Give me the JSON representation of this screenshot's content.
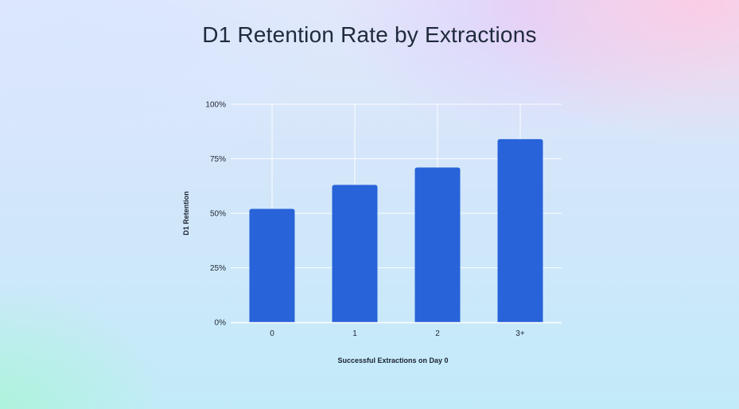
{
  "chart_data": {
    "type": "bar",
    "title": "D1 Retention Rate by Extractions",
    "xlabel": "Successful Extractions on Day 0",
    "ylabel": "D1 Retention",
    "categories": [
      "0",
      "1",
      "2",
      "3+"
    ],
    "values": [
      52,
      63,
      71,
      84
    ],
    "ylim": [
      0,
      100
    ],
    "yticks": [
      0,
      25,
      50,
      75,
      100
    ],
    "ytick_labels": [
      "0%",
      "25%",
      "50%",
      "75%",
      "100%"
    ],
    "grid": true,
    "legend": "none",
    "colors": {
      "bar": "#2863d9",
      "grid": "#ffffff",
      "text": "#222a36",
      "title": "#1f2a3c"
    }
  }
}
